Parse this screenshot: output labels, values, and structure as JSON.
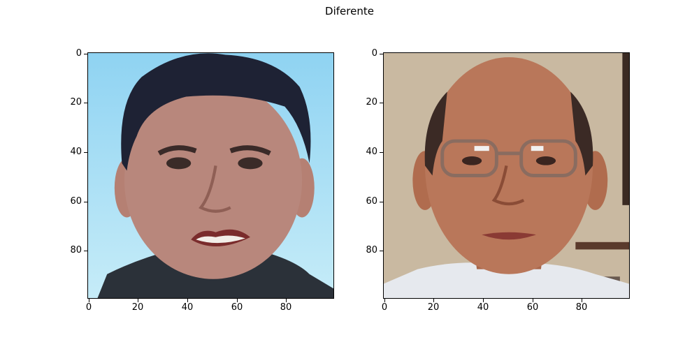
{
  "figure": {
    "title": "Diferente"
  },
  "chart_data": [
    {
      "type": "image",
      "title": "",
      "image_size": [
        100,
        100
      ],
      "xlim": [
        0,
        100
      ],
      "ylim": [
        100,
        0
      ],
      "xticks": [
        0,
        20,
        40,
        60,
        80
      ],
      "yticks": [
        0,
        20,
        40,
        60,
        80
      ],
      "content": "face photo: young man, dark short hair, smiling, dark jacket, light blue sky background",
      "colors": {
        "background": "#a9dcf2",
        "skin": "#b7857a",
        "hair": "#1f2235",
        "jacket": "#2a3038"
      }
    },
    {
      "type": "image",
      "title": "",
      "image_size": [
        100,
        100
      ],
      "xlim": [
        0,
        100
      ],
      "ylim": [
        100,
        0
      ],
      "xticks": [
        0,
        20,
        40,
        60,
        80
      ],
      "yticks": [
        0,
        20,
        40,
        60,
        80
      ],
      "content": "face photo: older balding man wearing glasses, light shirt, beige wall background",
      "colors": {
        "background": "#c8b8a0",
        "skin": "#b87456",
        "hair": "#3b2a25",
        "shirt": "#e6e9ee"
      }
    }
  ]
}
